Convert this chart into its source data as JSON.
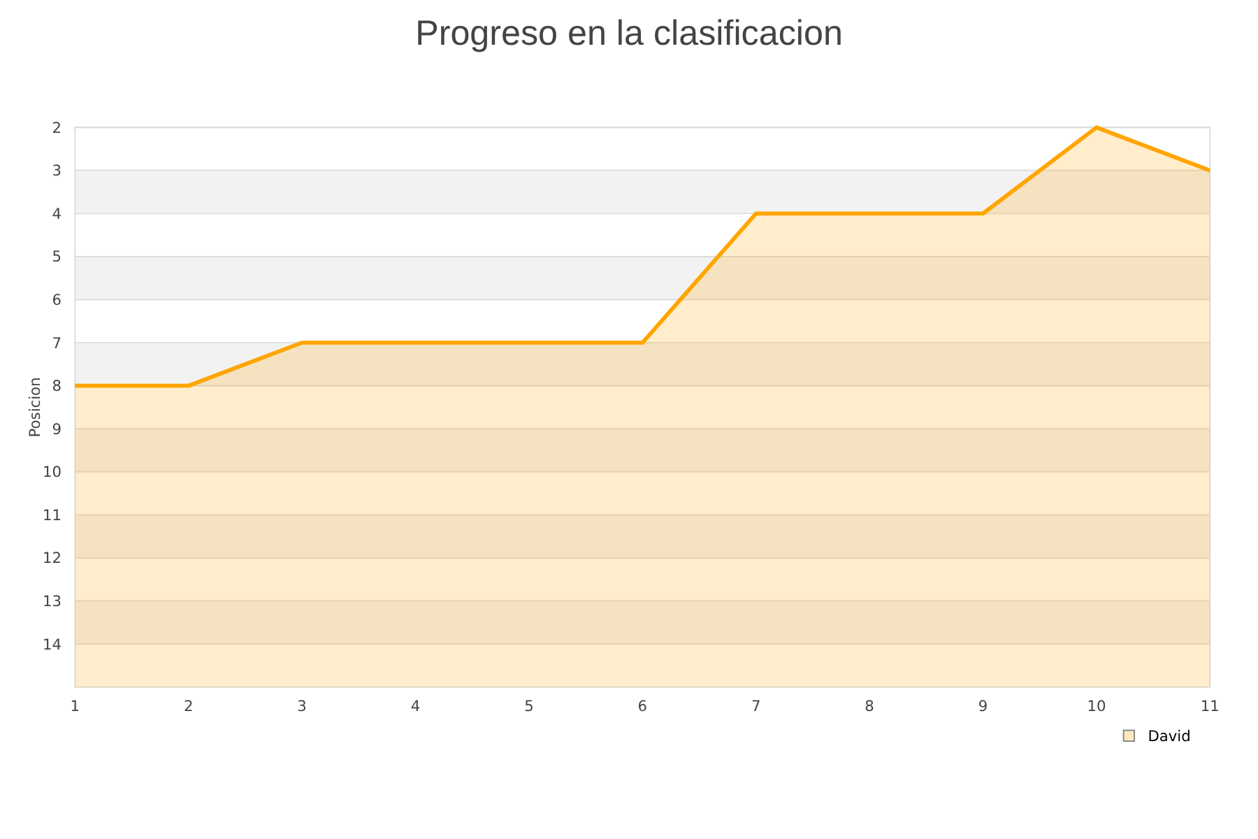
{
  "chart_data": {
    "type": "area",
    "title": "Progreso en la clasificacion",
    "ylabel": "Posicion",
    "x": [
      1,
      2,
      3,
      4,
      5,
      6,
      7,
      8,
      9,
      10,
      11
    ],
    "series": [
      {
        "name": "David",
        "color": "#ffa500",
        "values": [
          8,
          8,
          7,
          7,
          7,
          7,
          4,
          4,
          4,
          2,
          3
        ]
      }
    ],
    "xlim": [
      1,
      11
    ],
    "xticks": [
      1,
      2,
      3,
      4,
      5,
      6,
      7,
      8,
      9,
      10,
      11
    ],
    "ylim": [
      15,
      2
    ],
    "yticks": [
      2,
      3,
      4,
      5,
      6,
      7,
      8,
      9,
      10,
      11,
      12,
      13,
      14
    ],
    "grid": "y",
    "legend": "bottom right"
  }
}
